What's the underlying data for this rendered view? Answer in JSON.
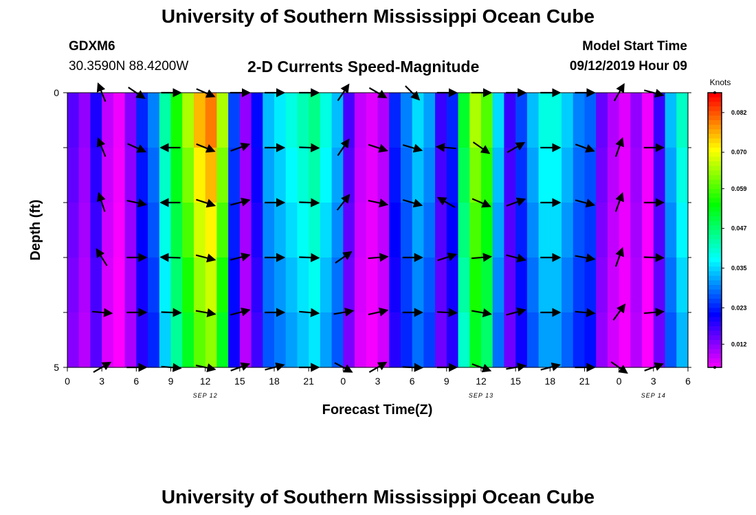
{
  "header": {
    "title": "University of Southern Mississippi Ocean Cube",
    "station_id": "GDXM6",
    "coordinates": "30.3590N 88.4200W",
    "plot_title": "2-D Currents Speed-Magnitude",
    "model_start_label": "Model Start Time",
    "model_start_value": "09/12/2019 Hour 09"
  },
  "footer": {
    "title": "University of Southern Mississippi Ocean Cube"
  },
  "chart_data": {
    "type": "heatmap",
    "title": "2-D Currents Speed-Magnitude",
    "xlabel": "Forecast Time(Z)",
    "ylabel": "Depth (ft)",
    "x_tick_labels": [
      "0",
      "3",
      "6",
      "9",
      "12",
      "15",
      "18",
      "21",
      "0",
      "3",
      "6",
      "9",
      "12",
      "15",
      "18",
      "21",
      "0",
      "3",
      "6"
    ],
    "date_labels": [
      {
        "label": "SEP 12",
        "hour": 12
      },
      {
        "label": "SEP 13",
        "hour": 36
      },
      {
        "label": "SEP 14",
        "hour": 51
      }
    ],
    "x_range_hours": [
      0,
      54
    ],
    "y_tick_labels": [
      "0",
      "5"
    ],
    "y_range_ft": [
      0,
      5
    ],
    "colorbar": {
      "label": "Knots",
      "range": [
        0.005,
        0.088
      ],
      "tick_values": [
        0.012,
        0.023,
        0.035,
        0.047,
        0.059,
        0.07,
        0.082
      ],
      "tick_labels": [
        "0.012",
        "0.023",
        "0.035",
        "0.047",
        "0.059",
        "0.070",
        "0.082"
      ]
    },
    "hours": [
      0,
      1,
      2,
      3,
      4,
      5,
      6,
      7,
      8,
      9,
      10,
      11,
      12,
      13,
      14,
      15,
      16,
      17,
      18,
      19,
      20,
      21,
      22,
      23,
      24,
      25,
      26,
      27,
      28,
      29,
      30,
      31,
      32,
      33,
      34,
      35,
      36,
      37,
      38,
      39,
      40,
      41,
      42,
      43,
      44,
      45,
      46,
      47,
      48,
      49,
      50,
      51,
      52,
      53
    ],
    "speed_profile_knots": [
      0.016,
      0.012,
      0.02,
      0.009,
      0.006,
      0.013,
      0.024,
      0.03,
      0.044,
      0.056,
      0.066,
      0.076,
      0.08,
      0.066,
      0.026,
      0.012,
      0.022,
      0.034,
      0.037,
      0.04,
      0.043,
      0.046,
      0.04,
      0.034,
      0.017,
      0.009,
      0.007,
      0.01,
      0.024,
      0.03,
      0.036,
      0.032,
      0.018,
      0.024,
      0.052,
      0.066,
      0.06,
      0.036,
      0.018,
      0.026,
      0.034,
      0.04,
      0.04,
      0.035,
      0.03,
      0.028,
      0.015,
      0.01,
      0.007,
      0.012,
      0.006,
      0.018,
      0.034,
      0.042
    ],
    "arrow_depth_levels_ft": [
      0,
      1,
      2,
      3,
      4,
      5
    ],
    "arrow_hours": [
      3,
      6,
      9,
      12,
      15,
      18,
      21,
      24,
      27,
      30,
      33,
      36,
      39,
      42,
      45,
      48,
      51
    ],
    "arrow_directions_deg": [
      [
        248,
        34,
        0,
        23,
        0,
        0,
        0,
        304,
        30,
        45,
        0,
        0,
        0,
        0,
        0,
        300,
        15
      ],
      [
        248,
        24,
        180,
        22,
        340,
        0,
        2,
        304,
        18,
        16,
        185,
        35,
        330,
        0,
        20,
        290,
        0
      ],
      [
        252,
        12,
        180,
        18,
        345,
        0,
        2,
        308,
        12,
        16,
        210,
        23,
        340,
        0,
        15,
        290,
        0
      ],
      [
        238,
        0,
        182,
        14,
        345,
        0,
        2,
        325,
        355,
        0,
        342,
        355,
        15,
        0,
        10,
        290,
        2
      ],
      [
        5,
        0,
        2,
        10,
        345,
        0,
        5,
        350,
        347,
        0,
        3,
        10,
        345,
        0,
        5,
        306,
        355
      ],
      [
        330,
        0,
        5,
        12,
        340,
        345,
        0,
        28,
        330,
        2,
        0,
        20,
        350,
        345,
        0,
        35,
        340
      ]
    ]
  }
}
